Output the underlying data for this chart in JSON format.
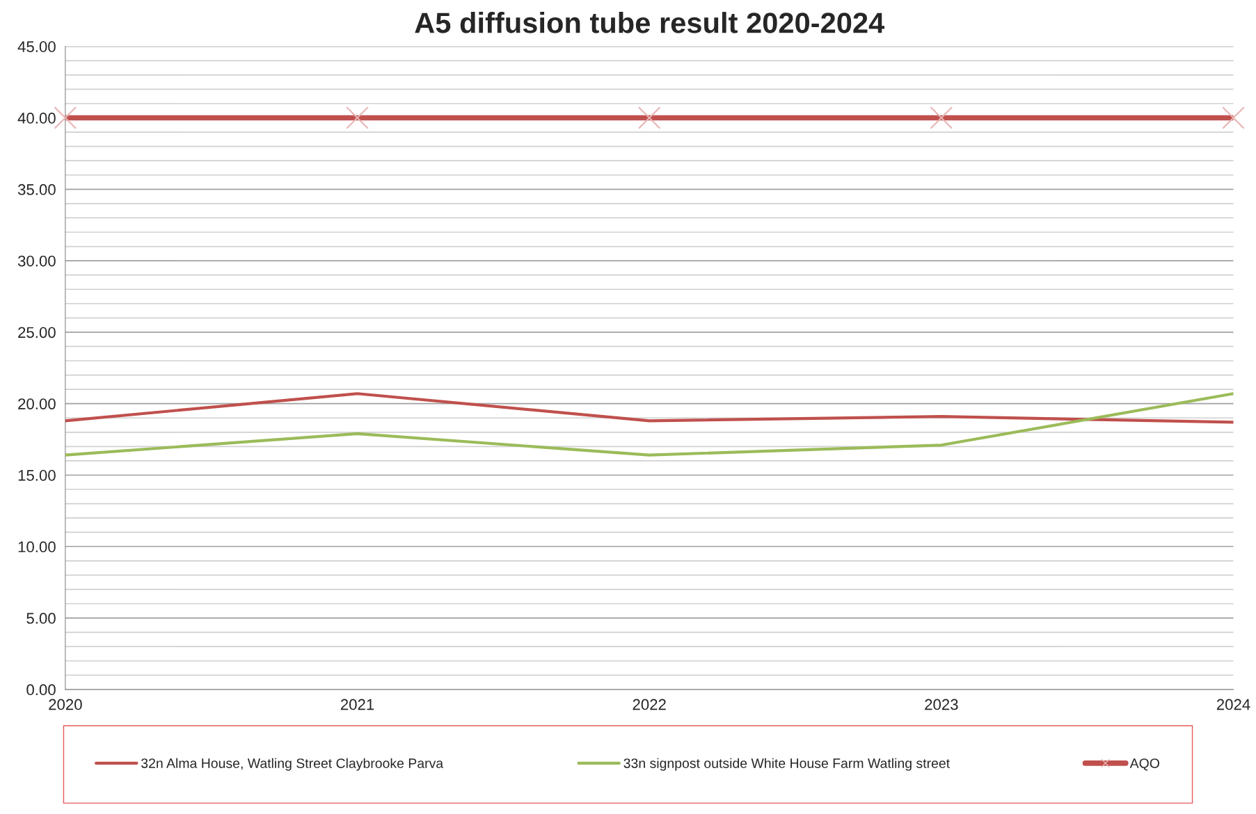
{
  "chart_data": {
    "type": "line",
    "title": "A5 diffusion tube result 2020-2024",
    "categories": [
      "2020",
      "2021",
      "2022",
      "2023",
      "2024"
    ],
    "series": [
      {
        "name": "32n Alma House, Watling Street Claybrooke Parva",
        "color": "#c0504d",
        "values": [
          18.8,
          20.7,
          18.8,
          19.1,
          18.7
        ]
      },
      {
        "name": "33n signpost outside White House Farm Watling street",
        "color": "#9bbb59",
        "values": [
          16.4,
          17.9,
          16.4,
          17.1,
          20.7
        ]
      },
      {
        "name": "AQO",
        "color": "#c0504d",
        "values": [
          40,
          40,
          40,
          40,
          40
        ],
        "marker": "cross"
      }
    ],
    "ylim": [
      0,
      45
    ],
    "yticks": [
      {
        "value": 0,
        "label": "0.00"
      },
      {
        "value": 1,
        "label": null
      },
      {
        "value": 2,
        "label": null
      },
      {
        "value": 3,
        "label": null
      },
      {
        "value": 4,
        "label": null
      },
      {
        "value": 5,
        "label": "5.00"
      },
      {
        "value": 6,
        "label": null
      },
      {
        "value": 7,
        "label": null
      },
      {
        "value": 8,
        "label": null
      },
      {
        "value": 9,
        "label": null
      },
      {
        "value": 10,
        "label": "10.00"
      },
      {
        "value": 11,
        "label": null
      },
      {
        "value": 12,
        "label": null
      },
      {
        "value": 13,
        "label": null
      },
      {
        "value": 14,
        "label": null
      },
      {
        "value": 15,
        "label": "15.00"
      },
      {
        "value": 16,
        "label": null
      },
      {
        "value": 17,
        "label": null
      },
      {
        "value": 18,
        "label": null
      },
      {
        "value": 19,
        "label": null
      },
      {
        "value": 20,
        "label": "20.00"
      },
      {
        "value": 21,
        "label": null
      },
      {
        "value": 22,
        "label": null
      },
      {
        "value": 23,
        "label": null
      },
      {
        "value": 24,
        "label": null
      },
      {
        "value": 25,
        "label": "25.00"
      },
      {
        "value": 26,
        "label": null
      },
      {
        "value": 27,
        "label": null
      },
      {
        "value": 28,
        "label": null
      },
      {
        "value": 29,
        "label": null
      },
      {
        "value": 30,
        "label": "30.00"
      },
      {
        "value": 31,
        "label": null
      },
      {
        "value": 32,
        "label": null
      },
      {
        "value": 33,
        "label": null
      },
      {
        "value": 34,
        "label": null
      },
      {
        "value": 35,
        "label": "35.00"
      },
      {
        "value": 36,
        "label": null
      },
      {
        "value": 37,
        "label": null
      },
      {
        "value": 38,
        "label": null
      },
      {
        "value": 39,
        "label": null
      },
      {
        "value": 40,
        "label": "40.00"
      },
      {
        "value": 41,
        "label": null
      },
      {
        "value": 42,
        "label": null
      },
      {
        "value": 43,
        "label": null
      },
      {
        "value": 44,
        "label": null
      },
      {
        "value": 45,
        "label": "45.00"
      }
    ],
    "grid": "y",
    "legend": "bottom"
  }
}
